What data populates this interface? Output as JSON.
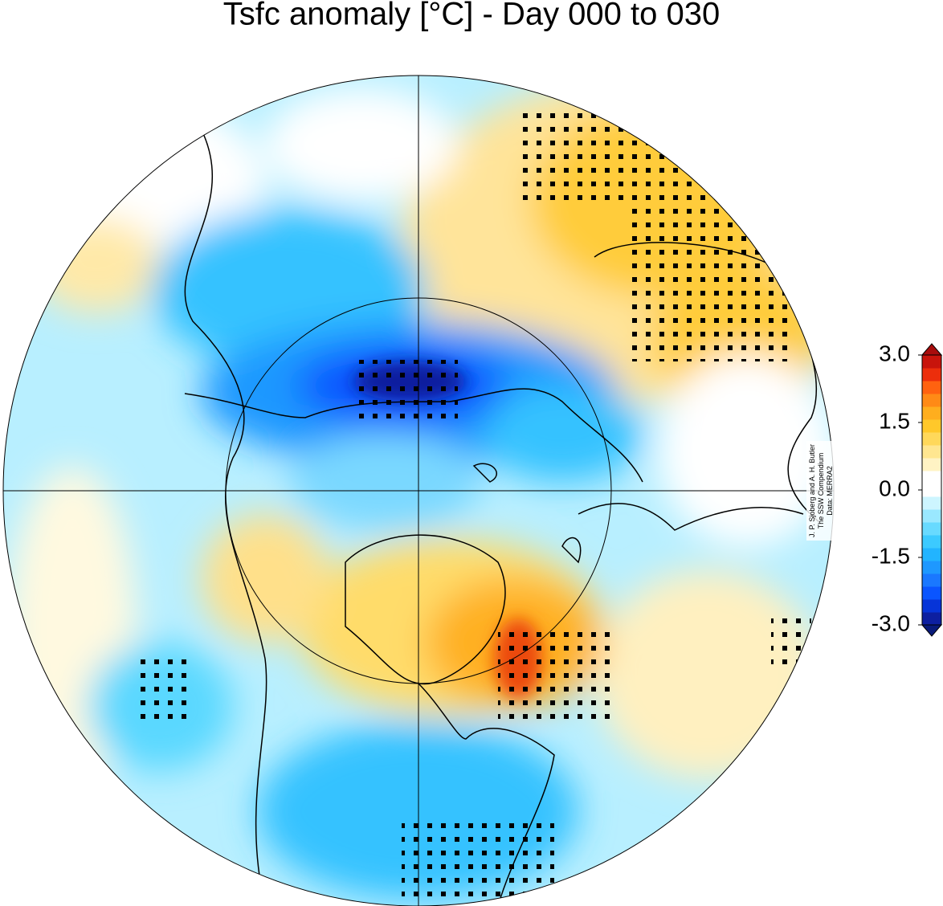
{
  "title": "Tsfc anomaly [°C] - Day 000 to 030",
  "colorbar": {
    "lim": [
      -3,
      3
    ],
    "ticks": [
      {
        "value": 3,
        "label": "3.0"
      },
      {
        "value": 1.5,
        "label": "1.5"
      },
      {
        "value": 0,
        "label": "0.0"
      },
      {
        "value": -1.5,
        "label": "-1.5"
      },
      {
        "value": -3,
        "label": "-3.0"
      }
    ],
    "colors": [
      "#0d1fa0",
      "#0634d8",
      "#0a55ff",
      "#1a78ff",
      "#1e98ff",
      "#22b4ff",
      "#3ccaff",
      "#68daff",
      "#9ae8ff",
      "#cdf5ff",
      "#ffffff",
      "#ffffff",
      "#fff3c4",
      "#ffe690",
      "#ffd85a",
      "#ffc82a",
      "#ffae1e",
      "#ff8a16",
      "#ff6210",
      "#ec2e0c",
      "#c8140c"
    ],
    "under_color": "#091a7a",
    "over_color": "#a80c0c"
  },
  "credits": [
    "J. P. Sjoberg and A. H. Butler",
    "The SSW Compendium",
    "Data: MERRA2"
  ]
}
